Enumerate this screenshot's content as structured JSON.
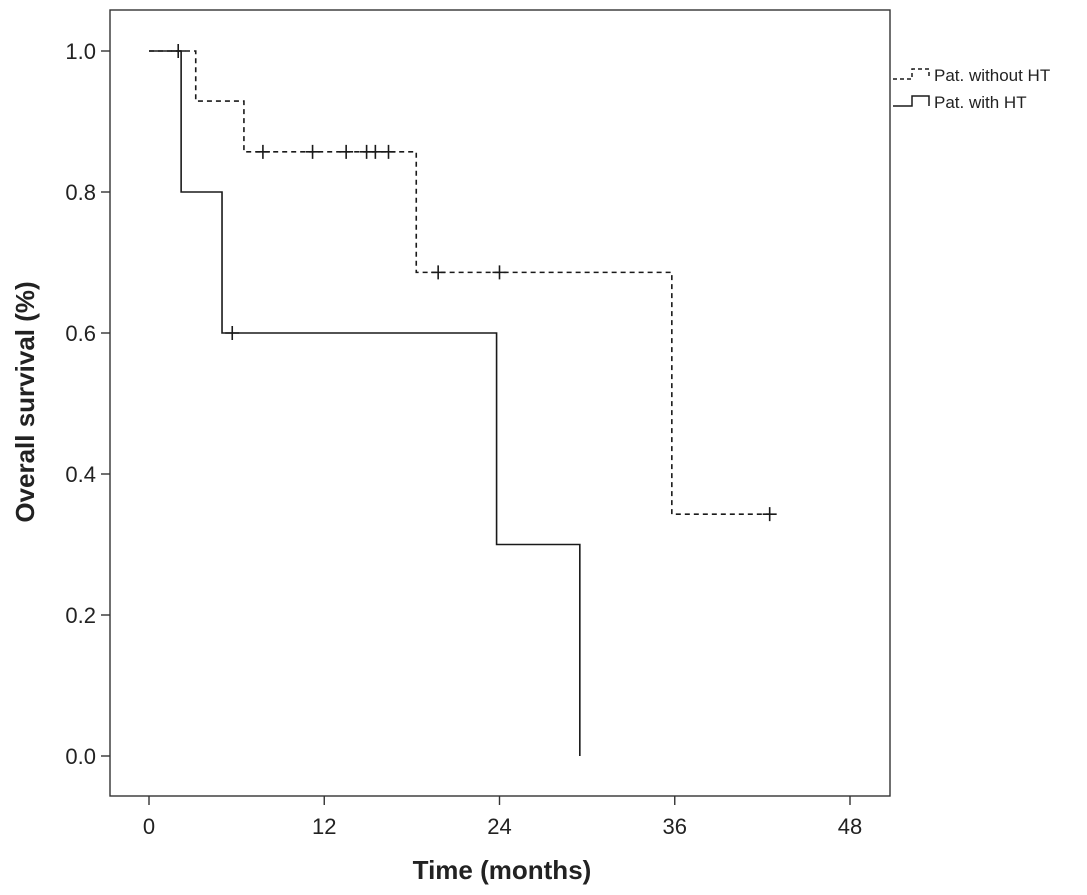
{
  "chart_data": {
    "type": "line",
    "subtype": "kaplan-meier",
    "title": "",
    "xlabel": "Time (months)",
    "ylabel": "Overall survival (%)",
    "xlim": [
      0,
      48
    ],
    "ylim": [
      0.0,
      1.0
    ],
    "x_ticks": [
      0,
      12,
      24,
      36,
      48
    ],
    "x_tick_labels": [
      "0",
      "12",
      "24",
      "36",
      "48"
    ],
    "y_ticks": [
      0.0,
      0.2,
      0.4,
      0.6,
      0.8,
      1.0
    ],
    "y_tick_labels": [
      "0.0",
      "0.2",
      "0.4",
      "0.6",
      "0.8",
      "1.0"
    ],
    "grid": false,
    "legend_position": "top-right outside plot",
    "series": [
      {
        "name": "Pat. without HT",
        "line_style": "dashed",
        "color": "#1a1a1a",
        "steps": [
          {
            "x": 0,
            "y": 1.0
          },
          {
            "x": 3.2,
            "y": 0.929
          },
          {
            "x": 6.5,
            "y": 0.857
          },
          {
            "x": 18.3,
            "y": 0.686
          },
          {
            "x": 35.8,
            "y": 0.343
          },
          {
            "x": 42.5,
            "y": 0.343
          }
        ],
        "censored": [
          {
            "x": 2.0,
            "y": 1.0
          },
          {
            "x": 7.8,
            "y": 0.857
          },
          {
            "x": 11.2,
            "y": 0.857
          },
          {
            "x": 13.5,
            "y": 0.857
          },
          {
            "x": 14.9,
            "y": 0.857
          },
          {
            "x": 15.5,
            "y": 0.857
          },
          {
            "x": 16.4,
            "y": 0.857
          },
          {
            "x": 19.8,
            "y": 0.686
          },
          {
            "x": 24.0,
            "y": 0.686
          },
          {
            "x": 42.5,
            "y": 0.343
          }
        ]
      },
      {
        "name": "Pat. with HT",
        "line_style": "solid",
        "color": "#1a1a1a",
        "steps": [
          {
            "x": 0,
            "y": 1.0
          },
          {
            "x": 2.2,
            "y": 0.8
          },
          {
            "x": 5.0,
            "y": 0.6
          },
          {
            "x": 23.8,
            "y": 0.3
          },
          {
            "x": 29.5,
            "y": 0.0
          }
        ],
        "censored": [
          {
            "x": 5.7,
            "y": 0.6
          }
        ]
      }
    ]
  }
}
